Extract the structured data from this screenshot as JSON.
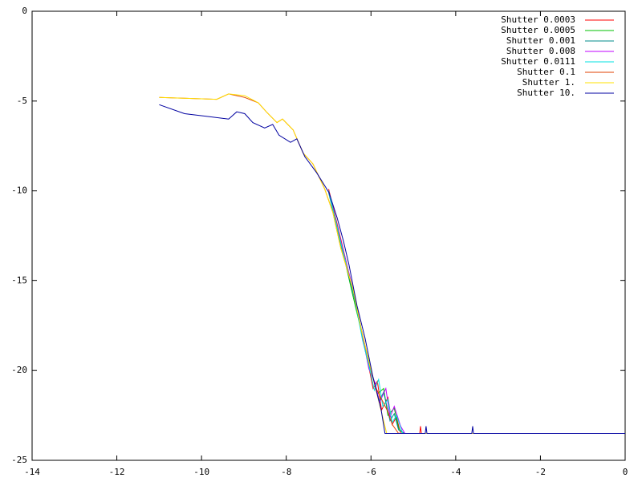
{
  "chart_data": {
    "type": "line",
    "xlim": [
      -14,
      0
    ],
    "ylim": [
      -25,
      0
    ],
    "xticks": [
      -14,
      -12,
      -10,
      -8,
      -6,
      -4,
      -2,
      0
    ],
    "yticks": [
      -25,
      -20,
      -15,
      -10,
      -5,
      0
    ],
    "legend": "top-right",
    "series": [
      {
        "name": "Shutter 0.0003",
        "color": "#ff0000",
        "x": [
          -7.0,
          -6.7,
          -6.4,
          -6.2,
          -6.05,
          -5.95,
          -5.85,
          -5.75,
          -5.6,
          -5.5,
          -5.4,
          -5.3,
          -4.85,
          -4.83,
          -4.81,
          0
        ],
        "values": [
          -9.9,
          -12.8,
          -15.8,
          -18.2,
          -19.8,
          -21.0,
          -20.6,
          -22.2,
          -21.5,
          -23.0,
          -22.6,
          -23.5,
          -23.5,
          -23.1,
          -23.5,
          -23.5
        ]
      },
      {
        "name": "Shutter 0.0005",
        "color": "#00c000",
        "x": [
          -7.0,
          -6.7,
          -6.45,
          -6.25,
          -6.1,
          -5.95,
          -5.85,
          -5.7,
          -5.6,
          -5.45,
          -5.35,
          -5.25,
          0
        ],
        "values": [
          -10.0,
          -13.0,
          -15.6,
          -17.6,
          -19.2,
          -20.4,
          -21.3,
          -21.0,
          -22.5,
          -22.1,
          -23.2,
          -23.5,
          -23.5
        ]
      },
      {
        "name": "Shutter 0.001",
        "color": "#008b8b",
        "x": [
          -7.0,
          -6.7,
          -6.4,
          -6.2,
          -6.05,
          -5.9,
          -5.8,
          -5.7,
          -5.55,
          -5.45,
          -5.35,
          -5.2,
          0
        ],
        "values": [
          -10.1,
          -13.1,
          -15.9,
          -18.0,
          -19.6,
          -20.8,
          -21.7,
          -21.2,
          -22.8,
          -22.4,
          -23.3,
          -23.5,
          -23.5
        ]
      },
      {
        "name": "Shutter 0.008",
        "color": "#c000ff",
        "x": [
          -7.0,
          -6.7,
          -6.4,
          -6.2,
          -6.05,
          -5.9,
          -5.8,
          -5.65,
          -5.55,
          -5.45,
          -5.3,
          -5.2,
          0
        ],
        "values": [
          -10.0,
          -12.9,
          -15.7,
          -18.1,
          -19.9,
          -20.7,
          -21.8,
          -21.0,
          -22.6,
          -22.0,
          -23.1,
          -23.5,
          -23.5
        ]
      },
      {
        "name": "Shutter 0.0111",
        "color": "#00e0e0",
        "x": [
          -7.0,
          -6.7,
          -6.4,
          -6.2,
          -6.05,
          -5.92,
          -5.82,
          -5.72,
          -5.6,
          -5.5,
          -5.4,
          -5.25,
          0
        ],
        "values": [
          -10.0,
          -13.0,
          -15.8,
          -18.3,
          -19.7,
          -21.1,
          -20.5,
          -22.0,
          -21.6,
          -22.9,
          -22.5,
          -23.5,
          -23.5
        ]
      },
      {
        "name": "Shutter 0.1",
        "color": "#e04000",
        "x": [
          -11.0,
          -9.64,
          -9.36,
          -8.98,
          -8.66,
          -8.47,
          -8.22,
          -8.09,
          -7.84,
          -7.6,
          -7.37,
          -7.09,
          -6.9,
          -6.71,
          -6.42,
          -6.23,
          -6.05,
          -5.9,
          -5.75,
          -5.6,
          -5.5,
          -5.35,
          0
        ],
        "values": [
          -4.8,
          -4.9,
          -4.6,
          -4.8,
          -5.1,
          -5.6,
          -6.2,
          -6.0,
          -6.6,
          -7.9,
          -8.5,
          -9.9,
          -11.2,
          -13.2,
          -15.5,
          -17.7,
          -19.5,
          -20.9,
          -21.6,
          -22.3,
          -23.0,
          -23.5,
          -23.5
        ]
      },
      {
        "name": "Shutter 1.",
        "color": "#ffe000",
        "x": [
          -11.0,
          -9.64,
          -9.36,
          -8.98,
          -8.66,
          -8.47,
          -8.22,
          -8.09,
          -7.84,
          -7.6,
          -7.37,
          -7.09,
          -6.9,
          -6.71,
          -6.42,
          -6.23,
          -6.05,
          -5.86,
          -5.67,
          -5.63,
          0
        ],
        "values": [
          -4.8,
          -4.9,
          -4.6,
          -4.7,
          -5.1,
          -5.6,
          -6.2,
          -6.0,
          -6.6,
          -7.9,
          -8.5,
          -9.9,
          -11.2,
          -13.2,
          -15.5,
          -17.7,
          -19.5,
          -21.3,
          -23.1,
          -23.5,
          -23.5
        ]
      },
      {
        "name": "Shutter 10.",
        "color": "#0000a0",
        "x": [
          -11.0,
          -10.4,
          -9.36,
          -9.17,
          -8.98,
          -8.79,
          -8.51,
          -8.32,
          -8.17,
          -7.9,
          -7.75,
          -7.56,
          -7.28,
          -6.99,
          -6.8,
          -6.65,
          -6.52,
          -6.33,
          -6.14,
          -5.95,
          -5.76,
          -5.67,
          -4.72,
          -4.7,
          -4.68,
          -3.62,
          -3.6,
          -3.58,
          0
        ],
        "values": [
          -5.2,
          -5.7,
          -6.0,
          -5.6,
          -5.7,
          -6.2,
          -6.5,
          -6.3,
          -6.9,
          -7.3,
          -7.1,
          -8.1,
          -9.0,
          -10.1,
          -11.5,
          -12.8,
          -14.1,
          -16.4,
          -18.2,
          -20.4,
          -22.2,
          -23.5,
          -23.5,
          -23.1,
          -23.5,
          -23.5,
          -23.1,
          -23.5,
          -23.5
        ]
      }
    ]
  }
}
